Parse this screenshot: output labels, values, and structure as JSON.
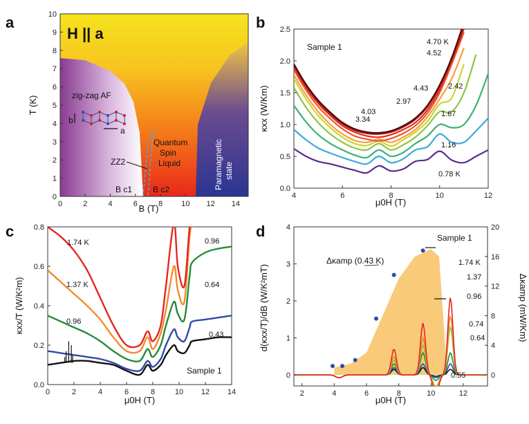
{
  "panels": {
    "a": {
      "label": "a",
      "title": "H || a",
      "xlabel": "B (T)",
      "ylabel": "T (K)",
      "xticks": [
        "0",
        "2",
        "4",
        "6",
        "8",
        "10",
        "12",
        "14"
      ],
      "yticks": [
        "0",
        "1",
        "2",
        "3",
        "4",
        "5",
        "6",
        "7",
        "8",
        "9",
        "10"
      ],
      "regions": {
        "zigzag": "zig-zag AF",
        "zz2": "ZZ2",
        "qsl": [
          "Quantum",
          "Spin",
          "Liquid"
        ],
        "para": [
          "Paramagnetic",
          "state"
        ]
      },
      "lattice_b": "b",
      "lattice_a": "a",
      "bc1": "B c1",
      "bc2": "B c2"
    },
    "b": {
      "label": "b",
      "annotation": "Sample 1",
      "xlabel": "μ0H (T)",
      "ylabel": "κxx (W/Km)",
      "xticks": [
        "4",
        "6",
        "8",
        "10",
        "12"
      ],
      "yticks": [
        "0.0",
        "0.5",
        "1.0",
        "1.5",
        "2.0",
        "2.5"
      ]
    },
    "c": {
      "label": "c",
      "annotation": "Sample 1",
      "xlabel": "μ0H (T)",
      "ylabel": "κxx/T (W/K²m)",
      "xticks": [
        "0",
        "2",
        "4",
        "6",
        "8",
        "10",
        "12",
        "14"
      ],
      "yticks": [
        "0.0",
        "0.2",
        "0.4",
        "0.6",
        "0.8"
      ]
    },
    "d": {
      "label": "d",
      "annotation": "Sample 1",
      "xlabel": "μ0H (T)",
      "ylabel": "d(κxx/T)/dB (W/K²mT)",
      "y2label": "Δκamp (mW/Km)",
      "amp_label": "Δκamp (0.43 K)",
      "xticks": [
        "2",
        "4",
        "6",
        "8",
        "10",
        "12"
      ],
      "yticks": [
        "0",
        "1",
        "2",
        "3",
        "4"
      ],
      "y2ticks": [
        "0",
        "4",
        "8",
        "12",
        "16",
        "20"
      ]
    }
  },
  "chart_data": [
    {
      "type": "area",
      "panel": "a",
      "title": "H || a",
      "xlabel": "B (T)",
      "ylabel": "T (K)",
      "xlim": [
        0,
        15
      ],
      "ylim": [
        0,
        10
      ],
      "regions": [
        {
          "name": "zig-zag AF",
          "boundary_x": [
            0,
            2,
            4,
            5,
            5.7,
            6.2,
            6.5
          ],
          "boundary_y": [
            7.6,
            7.5,
            6.9,
            6,
            5,
            3.5,
            0
          ]
        },
        {
          "name": "ZZ2",
          "dashed_x": [
            6.5,
            6.9,
            7.4,
            7.2,
            7.0
          ],
          "dashed_y": [
            0,
            3.0,
            3.8,
            2.0,
            0
          ]
        },
        {
          "name": "Quantum Spin Liquid"
        },
        {
          "name": "Paramagnetic state",
          "boundary_x": [
            10.8,
            11,
            12,
            13.5,
            15
          ],
          "boundary_y": [
            0,
            4,
            6,
            7.5,
            8.5
          ]
        }
      ],
      "markers": [
        "B c1",
        "B c2"
      ]
    },
    {
      "type": "line",
      "panel": "b",
      "xlabel": "μ0H (T)",
      "ylabel": "κxx (W/Km)",
      "xlim": [
        4,
        12
      ],
      "ylim": [
        0,
        2.5
      ],
      "series": [
        {
          "name": "4.70 K",
          "color": "#4a0e0e",
          "x": [
            4,
            4.5,
            5,
            5.5,
            6,
            6.5,
            7,
            7.5,
            8,
            8.5,
            9,
            9.5,
            10,
            10.5,
            11
          ],
          "y": [
            1.95,
            1.63,
            1.38,
            1.19,
            1.03,
            0.93,
            0.88,
            0.87,
            0.9,
            0.98,
            1.1,
            1.3,
            1.62,
            2.05,
            2.6
          ]
        },
        {
          "name": "4.52",
          "color": "#b21818",
          "x": [
            4,
            4.5,
            5,
            5.5,
            6,
            6.5,
            7,
            7.5,
            8,
            8.5,
            9,
            9.5,
            10,
            10.5,
            11
          ],
          "y": [
            1.93,
            1.61,
            1.36,
            1.17,
            1.01,
            0.91,
            0.86,
            0.85,
            0.88,
            0.96,
            1.08,
            1.28,
            1.6,
            2.03,
            2.55
          ]
        },
        {
          "name": "4.43",
          "color": "#e02d1f",
          "x": [
            4,
            4.5,
            5,
            5.5,
            6,
            6.5,
            7,
            7.5,
            8,
            8.5,
            9,
            9.5,
            10,
            10.5,
            11
          ],
          "y": [
            1.9,
            1.58,
            1.33,
            1.14,
            0.98,
            0.88,
            0.82,
            0.8,
            0.84,
            0.92,
            1.03,
            1.23,
            1.55,
            2.0,
            2.5
          ]
        },
        {
          "name": "4.03",
          "color": "#f0542a",
          "x": [
            4,
            4.5,
            5,
            5.5,
            6,
            6.5,
            7,
            7.5,
            8,
            8.5,
            9,
            9.5,
            10,
            10.5,
            11
          ],
          "y": [
            1.86,
            1.54,
            1.28,
            1.09,
            0.93,
            0.82,
            0.77,
            0.74,
            0.78,
            0.86,
            0.98,
            1.18,
            1.5,
            1.95,
            2.45
          ]
        },
        {
          "name": "3.34",
          "color": "#f4a03a",
          "x": [
            4,
            4.5,
            5,
            5.5,
            6,
            6.5,
            7,
            7.5,
            8,
            8.5,
            9,
            9.5,
            10,
            10.5,
            11
          ],
          "y": [
            1.78,
            1.46,
            1.2,
            1.0,
            0.85,
            0.75,
            0.72,
            0.77,
            0.72,
            0.8,
            0.92,
            1.12,
            1.4,
            1.72,
            2.2
          ]
        },
        {
          "name": "2.97",
          "color": "#cfd42e",
          "x": [
            4,
            4.5,
            5,
            5.5,
            6,
            6.5,
            7,
            7.5,
            8,
            8.5,
            9,
            9.5,
            10,
            10.5,
            11
          ],
          "y": [
            1.72,
            1.4,
            1.14,
            0.95,
            0.8,
            0.7,
            0.67,
            0.74,
            0.66,
            0.76,
            0.88,
            1.05,
            1.32,
            1.42,
            1.95
          ]
        },
        {
          "name": "2.42",
          "color": "#8cc63f",
          "x": [
            4,
            4.5,
            5,
            5.5,
            6,
            6.5,
            7,
            7.5,
            8,
            8.5,
            9,
            9.5,
            10,
            10.5,
            11,
            11.5
          ],
          "y": [
            1.58,
            1.27,
            1.03,
            0.85,
            0.72,
            0.63,
            0.6,
            0.7,
            0.6,
            0.68,
            0.8,
            0.98,
            1.2,
            1.2,
            1.5,
            2.1
          ]
        },
        {
          "name": "1.67",
          "color": "#3bb273",
          "x": [
            4,
            4.5,
            5,
            5.5,
            6,
            6.5,
            7,
            7.5,
            8,
            8.5,
            9,
            9.5,
            10,
            10.5,
            11,
            11.5,
            12
          ],
          "y": [
            1.3,
            1.04,
            0.84,
            0.7,
            0.6,
            0.52,
            0.48,
            0.6,
            0.5,
            0.56,
            0.7,
            0.82,
            1.0,
            0.95,
            1.0,
            1.3,
            1.8
          ]
        },
        {
          "name": "1.16",
          "color": "#3fa9e0",
          "x": [
            4,
            4.5,
            5,
            5.5,
            6,
            6.5,
            7,
            7.5,
            8,
            8.5,
            9,
            9.5,
            10,
            10.5,
            11,
            11.5,
            12
          ],
          "y": [
            0.92,
            0.76,
            0.63,
            0.55,
            0.48,
            0.42,
            0.38,
            0.5,
            0.4,
            0.46,
            0.6,
            0.65,
            0.85,
            0.72,
            0.72,
            0.9,
            1.1
          ]
        },
        {
          "name": "0.78 K",
          "color": "#5b2c8a",
          "x": [
            4,
            4.5,
            5,
            5.5,
            6,
            6.5,
            7,
            7.5,
            8,
            8.5,
            9,
            9.5,
            10,
            10.5,
            11,
            11.5,
            12
          ],
          "y": [
            0.62,
            0.5,
            0.42,
            0.38,
            0.33,
            0.28,
            0.24,
            0.35,
            0.27,
            0.3,
            0.42,
            0.45,
            0.58,
            0.44,
            0.4,
            0.5,
            0.6
          ]
        }
      ]
    },
    {
      "type": "line",
      "panel": "c",
      "xlabel": "μ0H (T)",
      "ylabel": "κxx/T (W/K²m)",
      "xlim": [
        0,
        14
      ],
      "ylim": [
        0,
        0.8
      ],
      "series": [
        {
          "name": "1.74 K",
          "color": "#e3261f",
          "x": [
            0,
            1,
            2,
            3,
            4,
            5,
            6,
            7,
            7.6,
            8,
            8.6,
            9,
            9.6,
            9.9,
            10.4,
            10.8,
            11,
            11.3
          ],
          "y": [
            0.8,
            0.75,
            0.68,
            0.58,
            0.44,
            0.3,
            0.2,
            0.2,
            0.27,
            0.22,
            0.3,
            0.5,
            0.82,
            0.6,
            0.5,
            0.8,
            0.82,
            0.8
          ]
        },
        {
          "name": "1.37 K",
          "color": "#f08c2e",
          "x": [
            0,
            1,
            2,
            3,
            4,
            5,
            6,
            7,
            7.6,
            8,
            8.6,
            9,
            9.6,
            9.9,
            10.4,
            10.8,
            11,
            11.3
          ],
          "y": [
            0.58,
            0.52,
            0.46,
            0.4,
            0.33,
            0.24,
            0.17,
            0.17,
            0.24,
            0.18,
            0.26,
            0.38,
            0.6,
            0.48,
            0.42,
            0.75,
            0.8,
            0.8
          ]
        },
        {
          "name": "0.96",
          "color": "#248a3a",
          "x": [
            0,
            1,
            2,
            3,
            4,
            5,
            6,
            7,
            7.6,
            8,
            8.6,
            9,
            9.6,
            9.9,
            10.4,
            10.8,
            11,
            12,
            13,
            14
          ],
          "y": [
            0.35,
            0.32,
            0.29,
            0.26,
            0.22,
            0.17,
            0.13,
            0.12,
            0.18,
            0.14,
            0.2,
            0.3,
            0.42,
            0.36,
            0.33,
            0.55,
            0.62,
            0.67,
            0.69,
            0.7
          ]
        },
        {
          "name": "0.64",
          "color": "#2f4aa8",
          "x": [
            0,
            1,
            2,
            3,
            4,
            5,
            6,
            7,
            7.6,
            8,
            8.6,
            9,
            9.6,
            9.9,
            10.4,
            10.8,
            11,
            12,
            13,
            14
          ],
          "y": [
            0.17,
            0.16,
            0.15,
            0.14,
            0.13,
            0.11,
            0.08,
            0.07,
            0.12,
            0.09,
            0.13,
            0.2,
            0.28,
            0.24,
            0.22,
            0.29,
            0.32,
            0.33,
            0.34,
            0.35
          ]
        },
        {
          "name": "0.43",
          "color": "#111111",
          "x": [
            0,
            1,
            2,
            3,
            4,
            5,
            6,
            7,
            7.6,
            8,
            8.6,
            9,
            9.6,
            9.9,
            10.4,
            10.8,
            11,
            12,
            13,
            14
          ],
          "y": [
            0.1,
            0.11,
            0.12,
            0.12,
            0.11,
            0.1,
            0.07,
            0.05,
            0.1,
            0.07,
            0.1,
            0.15,
            0.2,
            0.17,
            0.16,
            0.2,
            0.22,
            0.23,
            0.24,
            0.24
          ]
        }
      ]
    },
    {
      "type": "line",
      "panel": "d",
      "xlabel": "μ0H (T)",
      "ylabel": "d(κxx/T)/dB (W/K²mT)",
      "y2label": "Δκamp (mW/Km)",
      "xlim": [
        1.5,
        13.5
      ],
      "ylim": [
        -0.3,
        4
      ],
      "y2lim": [
        -1.5,
        20
      ],
      "amp_area": {
        "x": [
          4,
          5,
          6,
          7,
          8,
          9,
          10,
          10.5,
          11
        ],
        "y2": [
          1,
          1.5,
          3,
          8,
          13,
          16,
          17,
          16,
          0
        ]
      },
      "amp_points": {
        "name": "Δκamp (0.43 K)",
        "x": [
          3.9,
          4.5,
          5.3,
          6.6,
          7.7,
          9.5
        ],
        "y2": [
          1.2,
          1.2,
          2,
          7.6,
          13.5,
          16.8
        ]
      },
      "series": [
        {
          "name": "1.74 K",
          "color": "#e3261f",
          "peaks": [
            [
              7.7,
              0.7
            ],
            [
              9.5,
              1.4
            ],
            [
              11.2,
              2.1
            ]
          ]
        },
        {
          "name": "1.37",
          "color": "#f08c2e",
          "peaks": [
            [
              7.7,
              0.5
            ],
            [
              9.5,
              1.0
            ],
            [
              11.2,
              1.6
            ]
          ]
        },
        {
          "name": "0.96",
          "color": "#8cc63f",
          "peaks": [
            [
              7.7,
              0.4
            ],
            [
              9.5,
              0.8
            ],
            [
              11.2,
              1.3
            ]
          ]
        },
        {
          "name": "0.74",
          "color": "#248a3a",
          "peaks": [
            [
              7.7,
              0.3
            ],
            [
              9.5,
              0.6
            ],
            [
              11.2,
              0.6
            ]
          ]
        },
        {
          "name": "0.64",
          "color": "#2f4aa8",
          "peaks": [
            [
              7.7,
              0.2
            ],
            [
              9.5,
              0.3
            ],
            [
              11.2,
              0.3
            ]
          ]
        },
        {
          "name": "0.55",
          "color": "#111111",
          "peaks": [
            [
              7.7,
              0.15
            ],
            [
              9.5,
              0.2
            ],
            [
              11.2,
              0.15
            ]
          ]
        }
      ]
    }
  ]
}
